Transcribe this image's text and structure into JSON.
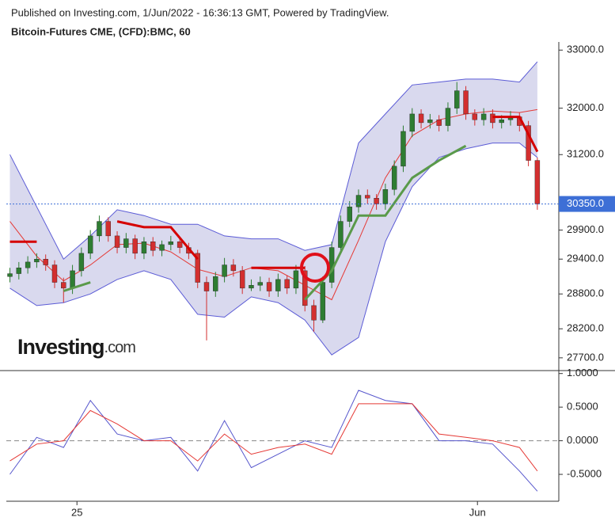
{
  "header": {
    "published": "Published on Investing.com, 1/Jun/2022 - 16:36:13 GMT, Powered by TradingView.",
    "symbol": "Bitcoin-Futures CME, (CFD):BMC, 60"
  },
  "watermark": {
    "brand": "Investing",
    "suffix": ".com"
  },
  "chart_data": [
    {
      "type": "candlestick",
      "open": [
        29100,
        29150,
        29250,
        29350,
        29400,
        29300,
        29000,
        28900,
        29200,
        29500,
        29800,
        30050,
        29800,
        29600,
        29750,
        29500,
        29700,
        29550,
        29650,
        29700,
        29600,
        29500,
        29000,
        28850,
        29100,
        29300,
        29200,
        28900,
        28950,
        29000,
        28850,
        29050,
        28900,
        29200,
        28600,
        28350,
        29000,
        29600,
        30050,
        30300,
        30500,
        30450,
        30350,
        30600,
        31000,
        31600,
        31900,
        31750,
        31800,
        31700,
        32000,
        32300,
        31900,
        31800,
        31900,
        31750,
        31800,
        31850,
        31700,
        31100
      ],
      "high": [
        29250,
        29350,
        29450,
        29500,
        29480,
        29380,
        29080,
        29300,
        29600,
        29900,
        30150,
        30120,
        29880,
        29850,
        29820,
        29780,
        29780,
        29720,
        29800,
        29780,
        29680,
        29560,
        29100,
        29180,
        29420,
        29400,
        29280,
        29050,
        29100,
        29080,
        29150,
        29120,
        29300,
        29280,
        28700,
        29100,
        29700,
        30150,
        30400,
        30600,
        30600,
        30520,
        30700,
        31100,
        31700,
        32000,
        31980,
        31900,
        31880,
        32100,
        32450,
        32380,
        31980,
        32000,
        31980,
        31880,
        31950,
        31920,
        31780,
        31150
      ],
      "low": [
        29000,
        29050,
        29150,
        29250,
        29200,
        28900,
        28650,
        28800,
        29100,
        29400,
        29700,
        29700,
        29500,
        29500,
        29400,
        29400,
        29450,
        29450,
        29550,
        29500,
        29400,
        28900,
        28000,
        28750,
        29000,
        29100,
        28800,
        28850,
        28850,
        28750,
        28750,
        28800,
        28800,
        28500,
        28150,
        28300,
        28900,
        29500,
        29950,
        30200,
        30350,
        30250,
        30250,
        30500,
        30900,
        31500,
        31650,
        31650,
        31600,
        31600,
        31900,
        31800,
        31700,
        31700,
        31650,
        31650,
        31700,
        31600,
        31000,
        30250
      ],
      "close": [
        29150,
        29250,
        29350,
        29400,
        29300,
        29000,
        28900,
        29200,
        29500,
        29800,
        30050,
        29800,
        29600,
        29750,
        29500,
        29700,
        29550,
        29650,
        29700,
        29600,
        29500,
        29000,
        28850,
        29100,
        29300,
        29200,
        28900,
        28950,
        29000,
        28850,
        29050,
        28900,
        29200,
        28600,
        28350,
        29000,
        29600,
        30050,
        30300,
        30500,
        30450,
        30350,
        30600,
        31000,
        31600,
        31900,
        31750,
        31800,
        31700,
        32000,
        32300,
        31900,
        31800,
        31900,
        31750,
        31800,
        31850,
        31700,
        31100,
        30350
      ],
      "up_color": "#2e7d32",
      "down_color": "#d32f2f",
      "overlay_x": [
        0,
        3,
        6,
        9,
        12,
        15,
        18,
        21,
        24,
        27,
        30,
        33,
        36,
        39,
        42,
        45,
        48,
        51,
        54,
        57,
        59
      ],
      "bands": {
        "fill": "#d9d9ee",
        "color": "#5b5bd6",
        "middle_color": "#e53935",
        "upper": [
          31200,
          30300,
          29400,
          29800,
          30250,
          30150,
          30000,
          30000,
          29800,
          29750,
          29750,
          29550,
          29650,
          31400,
          31900,
          32400,
          32450,
          32500,
          32500,
          32450,
          32800
        ],
        "middle": [
          30050,
          29450,
          29025,
          29300,
          29650,
          29675,
          29525,
          29225,
          29100,
          29250,
          29200,
          28950,
          28700,
          29725,
          30800,
          31525,
          31800,
          31900,
          31950,
          31925,
          31975
        ],
        "lower": [
          28900,
          28600,
          28650,
          28800,
          29050,
          29200,
          29050,
          28450,
          28400,
          28750,
          28650,
          28350,
          27750,
          28050,
          29700,
          30650,
          31150,
          31300,
          31400,
          31400,
          31150
        ]
      },
      "supertrend": {
        "up_color": "#5a9a4a",
        "down_color": "#d50000",
        "up": [
          null,
          null,
          28850,
          29000,
          null,
          null,
          null,
          null,
          28800,
          null,
          null,
          28700,
          29200,
          30150,
          30150,
          30800,
          31100,
          31350,
          null,
          null,
          null
        ],
        "down": [
          29700,
          29700,
          null,
          null,
          30050,
          29950,
          29950,
          29400,
          null,
          29250,
          29250,
          29250,
          null,
          null,
          null,
          null,
          null,
          null,
          31850,
          31850,
          31250
        ]
      },
      "xlim": [
        -0.4,
        61.4
      ],
      "ylim": [
        27480,
        33140
      ],
      "yticks": [
        {
          "value": 33000,
          "label": "33000.0"
        },
        {
          "value": 32000,
          "label": "32000.0"
        },
        {
          "value": 31200,
          "label": "31200.0"
        },
        {
          "value": 29900,
          "label": "29900.0"
        },
        {
          "value": 29400,
          "label": "29400.0"
        },
        {
          "value": 28800,
          "label": "28800.0"
        },
        {
          "value": 28200,
          "label": "28200.0"
        },
        {
          "value": 27700,
          "label": "27700.0"
        }
      ],
      "last_price": {
        "value": 30350,
        "label": "30350.0",
        "color": "#3d6fd6"
      }
    },
    {
      "type": "line",
      "x": [
        0,
        3,
        6,
        9,
        12,
        15,
        18,
        21,
        24,
        27,
        30,
        33,
        36,
        39,
        42,
        45,
        48,
        51,
        54,
        57,
        59
      ],
      "series": [
        {
          "color": "#5555cc",
          "values": [
            -0.5,
            0.05,
            -0.1,
            0.6,
            0.1,
            0.0,
            0.05,
            -0.45,
            0.3,
            -0.4,
            -0.2,
            0.0,
            -0.1,
            0.75,
            0.6,
            0.55,
            0.0,
            0.0,
            -0.05,
            -0.45,
            -0.75
          ]
        },
        {
          "color": "#e53935",
          "values": [
            -0.3,
            -0.05,
            0.0,
            0.45,
            0.25,
            0.0,
            0.0,
            -0.3,
            0.1,
            -0.2,
            -0.1,
            -0.05,
            -0.2,
            0.55,
            0.55,
            0.55,
            0.1,
            0.05,
            0.0,
            -0.1,
            -0.45
          ]
        }
      ],
      "xlim": [
        -0.4,
        61.4
      ],
      "ylim": [
        -0.9,
        1.02
      ],
      "yticks": [
        {
          "value": 1,
          "label": "1.0000"
        },
        {
          "value": 0.5,
          "label": "0.5000"
        },
        {
          "value": 0,
          "label": "0.0000"
        },
        {
          "value": -0.5,
          "label": "-0.5000"
        }
      ],
      "reference_line": 0,
      "xticks": [
        {
          "value": 7.5,
          "label": "25"
        },
        {
          "value": 52.3,
          "label": "Jun"
        }
      ]
    }
  ]
}
